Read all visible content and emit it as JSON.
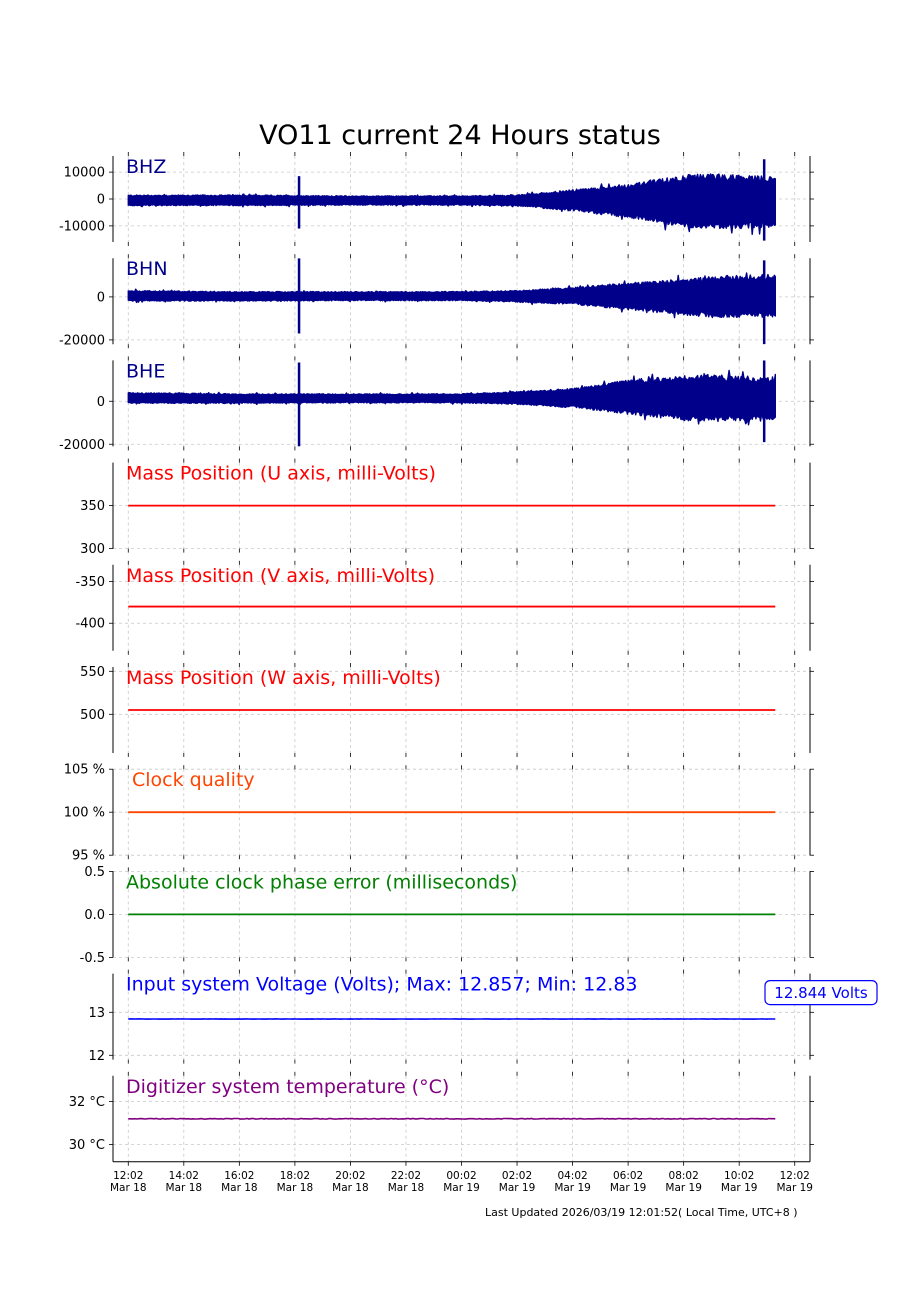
{
  "page": {
    "title": "VO11 current 24 Hours status",
    "footer": "Last Updated 2026/03/19 12:01:52( Local Time, UTC+8 )"
  },
  "chart_data": [
    {
      "type": "line",
      "title": "BHZ",
      "title_color": "#00008b",
      "series_color": "#00008b",
      "kind": "waveform",
      "ylim": [
        -16000,
        16000
      ],
      "y_ticks": [
        10000,
        0,
        -10000
      ],
      "y_tick_labels": [
        "10000",
        "0",
        "-10000"
      ],
      "envelope": {
        "t": [
          0,
          4,
          8,
          12,
          14,
          16,
          18,
          20,
          21,
          22,
          23,
          23.3
        ],
        "upper": [
          1500,
          1500,
          1200,
          1200,
          1500,
          3500,
          5500,
          9000,
          9500,
          9000,
          8500,
          8500
        ],
        "lower": [
          -2500,
          -2500,
          -2300,
          -2300,
          -2600,
          -4500,
          -7000,
          -10500,
          -11000,
          -11000,
          -10500,
          -10500
        ]
      },
      "spikes": [
        {
          "t": 6.15,
          "max": 8500,
          "min": -11000
        },
        {
          "t": 22.9,
          "max": 14800,
          "min": -15500
        }
      ]
    },
    {
      "type": "line",
      "title": "BHN",
      "title_color": "#00008b",
      "series_color": "#00008b",
      "kind": "waveform",
      "ylim": [
        -22000,
        18000
      ],
      "y_ticks": [
        0,
        -20000
      ],
      "y_tick_labels": [
        "0",
        "-20000"
      ],
      "envelope": {
        "t": [
          0,
          4,
          8,
          12,
          14,
          16,
          18,
          20,
          21,
          22,
          23,
          23.3
        ],
        "upper": [
          3000,
          2500,
          2500,
          2500,
          3000,
          4500,
          6500,
          8500,
          9500,
          10000,
          10500,
          10500
        ],
        "lower": [
          -2000,
          -2000,
          -1800,
          -1800,
          -2500,
          -3500,
          -6000,
          -8500,
          -9500,
          -9500,
          -9500,
          -9500
        ]
      },
      "spikes": [
        {
          "t": 6.15,
          "max": 18000,
          "min": -17000
        },
        {
          "t": 22.9,
          "max": 17000,
          "min": -22000
        }
      ]
    },
    {
      "type": "line",
      "title": "BHE",
      "title_color": "#00008b",
      "series_color": "#00008b",
      "kind": "waveform",
      "ylim": [
        -21000,
        19000
      ],
      "y_ticks": [
        0,
        -20000
      ],
      "y_tick_labels": [
        "0",
        "-20000"
      ],
      "envelope": {
        "t": [
          0,
          4,
          8,
          12,
          14,
          16,
          18,
          20,
          21,
          22,
          23,
          23.3
        ],
        "upper": [
          4000,
          3500,
          3500,
          3500,
          4500,
          6000,
          10000,
          12000,
          12500,
          11500,
          11000,
          11000
        ],
        "lower": [
          -1000,
          -1000,
          -800,
          -800,
          -1500,
          -3000,
          -6000,
          -9000,
          -9500,
          -9000,
          -8500,
          -8500
        ]
      },
      "spikes": [
        {
          "t": 6.15,
          "max": 18000,
          "min": -21000
        },
        {
          "t": 22.9,
          "max": 19000,
          "min": -19000
        }
      ]
    },
    {
      "type": "line",
      "title": "Mass Position (U axis, milli-Volts)",
      "title_color": "#ff0000",
      "series_color": "#ff0000",
      "kind": "flat",
      "value": 350,
      "ylim": [
        300,
        400
      ],
      "y_ticks": [
        350,
        300
      ],
      "y_tick_labels": [
        "350",
        "300"
      ]
    },
    {
      "type": "line",
      "title": "Mass Position (V axis, milli-Volts)",
      "title_color": "#ff0000",
      "series_color": "#ff0000",
      "kind": "flat",
      "value": -380,
      "ylim": [
        -433,
        -330
      ],
      "y_ticks": [
        -350,
        -400
      ],
      "y_tick_labels": [
        "-350",
        "-400"
      ]
    },
    {
      "type": "line",
      "title": "Mass Position (W axis, milli-Volts)",
      "title_color": "#ff0000",
      "series_color": "#ff0000",
      "kind": "flat",
      "value": 505,
      "ylim": [
        455,
        555
      ],
      "y_ticks": [
        550,
        500
      ],
      "y_tick_labels": [
        "550",
        "500"
      ]
    },
    {
      "type": "line",
      "title": "Clock quality",
      "title_color": "#ff4500",
      "series_color": "#ff4500",
      "kind": "flat",
      "value": 100,
      "ylim": [
        95,
        105
      ],
      "y_ticks": [
        105,
        100,
        95
      ],
      "y_tick_labels": [
        "105 %",
        "100 %",
        "95 %"
      ]
    },
    {
      "type": "line",
      "title": "Absolute clock phase error (milliseconds)",
      "title_color": "#008000",
      "series_color": "#008000",
      "kind": "flat",
      "value": 0.0,
      "ylim": [
        -0.5,
        0.5
      ],
      "y_ticks": [
        0.5,
        0.0,
        -0.5
      ],
      "y_tick_labels": [
        "0.5",
        "0.0",
        "-0.5"
      ]
    },
    {
      "type": "line",
      "title": "Input system Voltage (Volts);    Max: 12.857; Min: 12.83",
      "title_color": "#0000ff",
      "series_color": "#0000ff",
      "kind": "noisy",
      "value": 12.844,
      "noise": 0.006,
      "ylim": [
        11.9,
        13.9
      ],
      "y_ticks": [
        13,
        12
      ],
      "y_tick_labels": [
        "13",
        "12"
      ],
      "annotation": "12.844 Volts"
    },
    {
      "type": "line",
      "title": "Digitizer system temperature (°C)",
      "title_color": "#800080",
      "series_color": "#800080",
      "kind": "noisy",
      "value": 31.2,
      "noise": 0.03,
      "ylim": [
        29.2,
        33.2
      ],
      "y_ticks": [
        32,
        30
      ],
      "y_tick_labels": [
        "32 °C",
        "30 °C"
      ]
    }
  ],
  "x_axis": {
    "range_hours": [
      -0.55,
      24.55
    ],
    "data_end_hours": 23.3,
    "tick_hours": [
      0,
      2,
      4,
      6,
      8,
      10,
      12,
      14,
      16,
      18,
      20,
      22,
      24
    ],
    "tick_labels": [
      [
        "12:02",
        "Mar 18"
      ],
      [
        "14:02",
        "Mar 18"
      ],
      [
        "16:02",
        "Mar 18"
      ],
      [
        "18:02",
        "Mar 18"
      ],
      [
        "20:02",
        "Mar 18"
      ],
      [
        "22:02",
        "Mar 18"
      ],
      [
        "00:02",
        "Mar 19"
      ],
      [
        "02:02",
        "Mar 19"
      ],
      [
        "04:02",
        "Mar 19"
      ],
      [
        "06:02",
        "Mar 19"
      ],
      [
        "08:02",
        "Mar 19"
      ],
      [
        "10:02",
        "Mar 19"
      ],
      [
        "12:02",
        "Mar 19"
      ]
    ]
  }
}
